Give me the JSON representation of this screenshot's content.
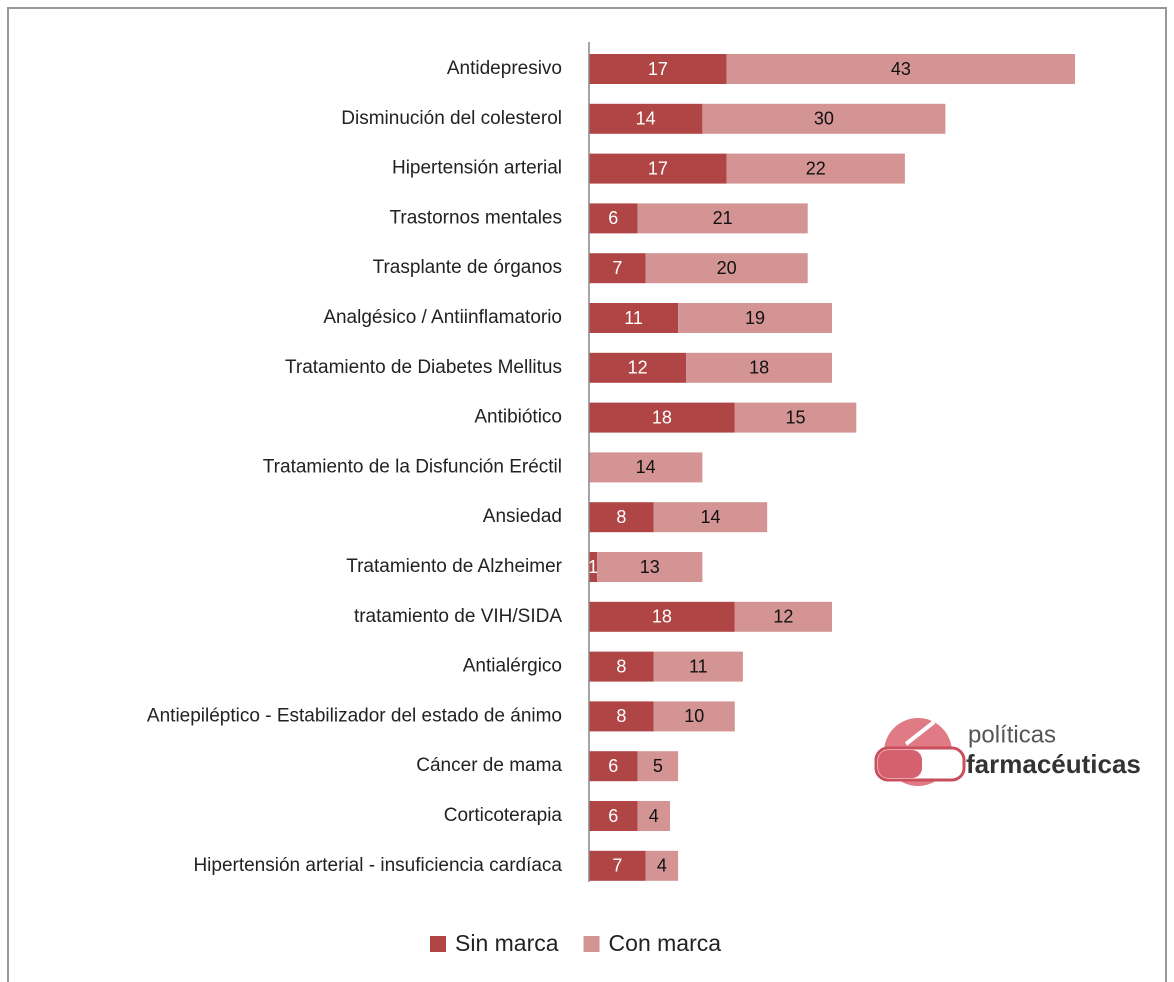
{
  "chart_data": {
    "type": "stacked_barh",
    "categories": [
      "Antidepresivo",
      "Disminución del colesterol",
      "Hipertensión arterial",
      "Trastornos mentales",
      "Trasplante de órganos",
      "Analgésico / Antiinflamatorio",
      "Tratamiento de Diabetes Mellitus",
      "Antibiótico",
      "Tratamiento de la Disfunción Eréctil",
      "Ansiedad",
      "Tratamiento de Alzheimer",
      "tratamiento de VIH/SIDA",
      "Antialérgico",
      "Antiepiléptico - Estabilizador del estado de ánimo",
      "Cáncer de mama",
      "Corticoterapia",
      "Hipertensión arterial - insuficiencia cardíaca"
    ],
    "series": [
      {
        "name": "Sin marca",
        "color": "#b04545",
        "label_color": "#ffffff",
        "values": [
          17,
          14,
          17,
          6,
          7,
          11,
          12,
          18,
          null,
          8,
          1,
          18,
          8,
          8,
          6,
          6,
          7
        ]
      },
      {
        "name": "Con marca",
        "color": "#d49494",
        "label_color": "#111111",
        "values": [
          43,
          30,
          22,
          21,
          20,
          19,
          18,
          15,
          14,
          14,
          13,
          12,
          11,
          10,
          5,
          4,
          4
        ]
      }
    ],
    "legend": "bottom",
    "logo": {
      "line1": "políticas",
      "line2": "farmacéuticas"
    }
  }
}
